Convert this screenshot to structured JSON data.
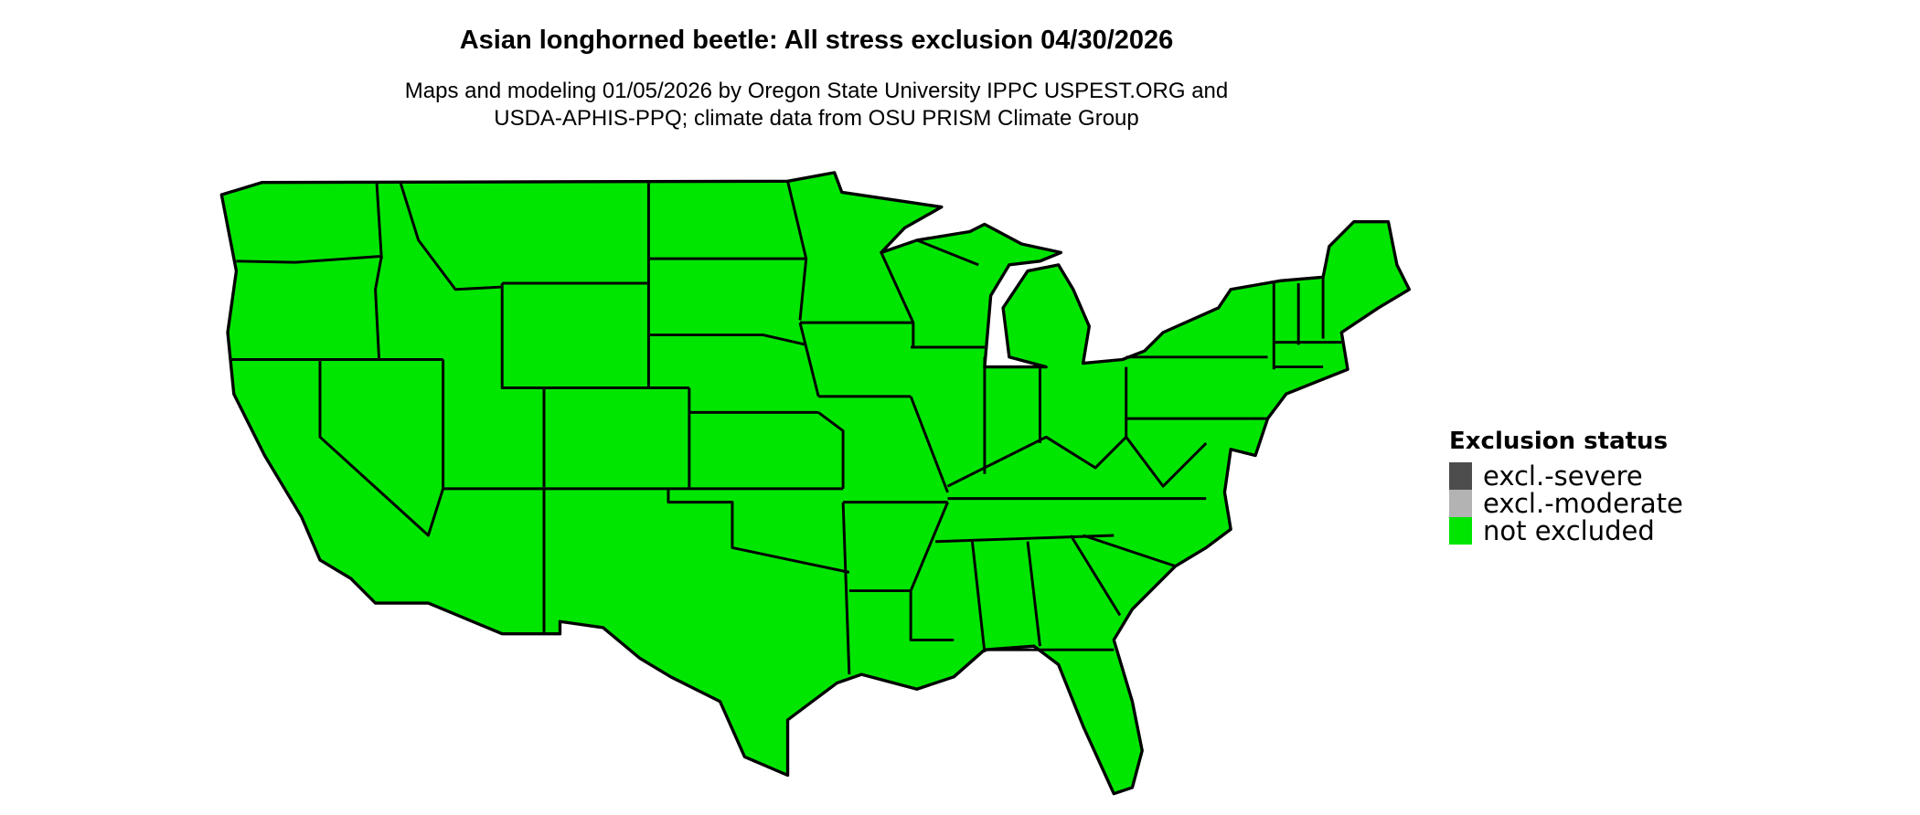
{
  "title": "Asian longhorned beetle: All stress exclusion 04/30/2026",
  "subtitle_line1": "Maps and modeling 01/05/2026 by Oregon State University IPPC USPEST.ORG and",
  "subtitle_line2": "USDA-APHIS-PPQ; climate data from OSU PRISM Climate Group",
  "map": {
    "region": "conterminous United States",
    "fill_status": "not excluded",
    "fill_color": "#00e600"
  },
  "legend": {
    "title": "Exclusion status",
    "items": [
      {
        "label": "excl.-severe",
        "color": "#4d4d4d"
      },
      {
        "label": "excl.-moderate",
        "color": "#b3b3b3"
      },
      {
        "label": "not excluded",
        "color": "#00e600"
      }
    ]
  }
}
